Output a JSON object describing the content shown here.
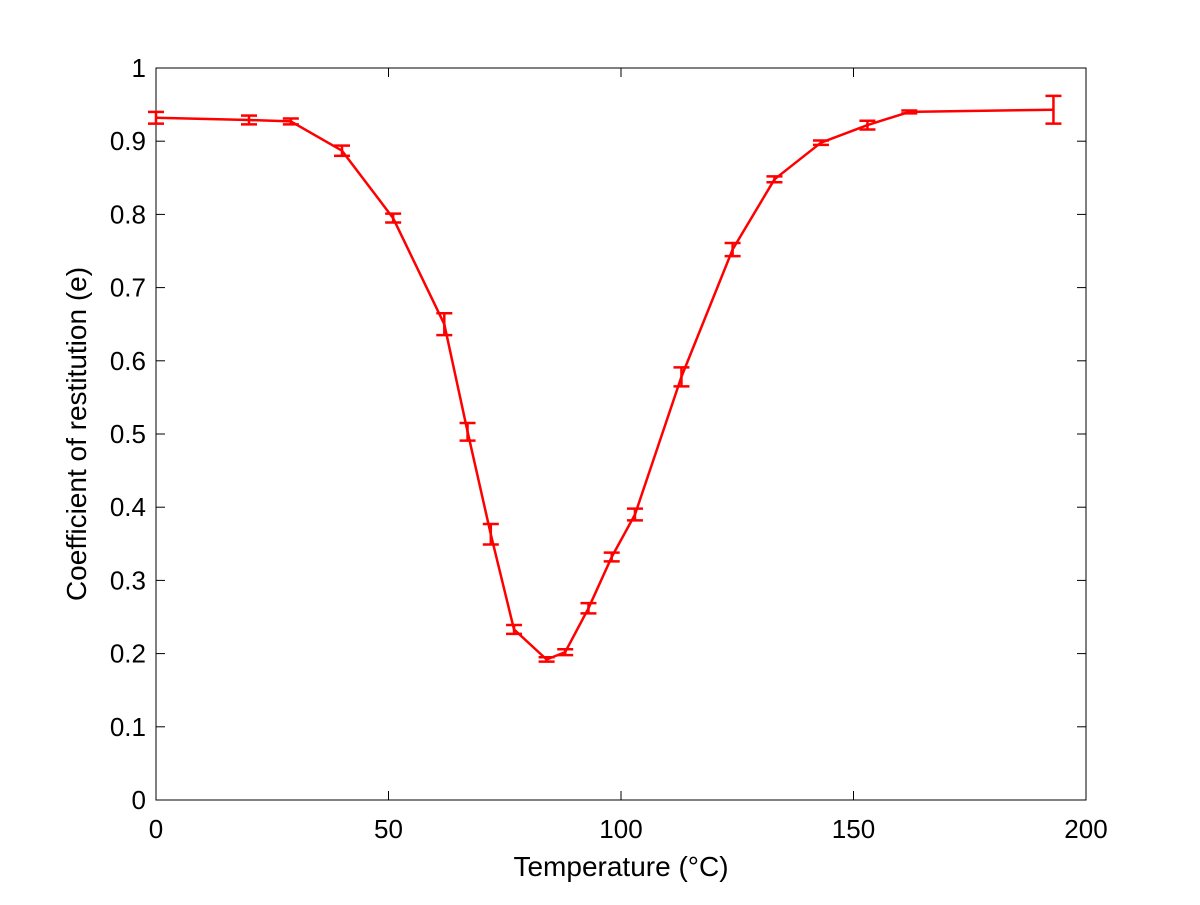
{
  "chart_data": {
    "type": "line",
    "title": "",
    "xlabel": "Temperature (°C)",
    "ylabel": "Coefficient of restitution (e)",
    "xlim": [
      0,
      200
    ],
    "ylim": [
      0,
      1
    ],
    "grid": false,
    "legend": "none",
    "xticks": [
      "0",
      "50",
      "100",
      "150",
      "200"
    ],
    "yticks": [
      "0",
      "0.1",
      "0.2",
      "0.3",
      "0.4",
      "0.5",
      "0.6",
      "0.7",
      "0.8",
      "0.9",
      "1"
    ],
    "series": [
      {
        "color": "#ff0000",
        "x": [
          0,
          20,
          29,
          40,
          51,
          62,
          67,
          72,
          77,
          84,
          88,
          93,
          98,
          103,
          113,
          124,
          133,
          143,
          153,
          162,
          193
        ],
        "y": [
          0.932,
          0.929,
          0.927,
          0.887,
          0.795,
          0.65,
          0.503,
          0.363,
          0.233,
          0.192,
          0.202,
          0.262,
          0.332,
          0.39,
          0.578,
          0.752,
          0.848,
          0.898,
          0.922,
          0.94,
          0.943
        ],
        "err": [
          0.008,
          0.006,
          0.004,
          0.007,
          0.006,
          0.015,
          0.012,
          0.014,
          0.006,
          0.003,
          0.004,
          0.007,
          0.006,
          0.008,
          0.013,
          0.009,
          0.004,
          0.003,
          0.006,
          0.002,
          0.019
        ]
      }
    ]
  }
}
